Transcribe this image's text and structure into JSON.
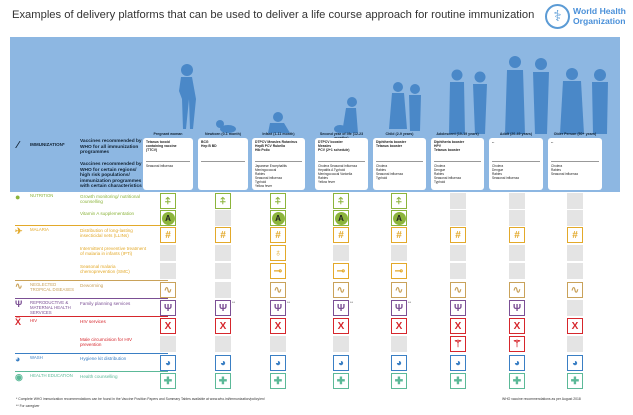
{
  "title": "Examples of delivery platforms that can be used to deliver a life course approach for routine immunization",
  "logo": {
    "text": [
      "World Health",
      "Organization"
    ],
    "icon": "who-emblem-icon"
  },
  "immunization": {
    "label": "IMMUNIZATION*",
    "icon": "syringe-icon",
    "all_programmes": "Vaccines recommended by WHO for all immunization programmes",
    "certain": "Vaccines recommended by WHO for certain regions/ high risk populations/ immunization programmes with certain characteristics"
  },
  "columns": [
    {
      "name": "Pregnant woman",
      "age": "",
      "all": [
        "Tetanus toxoid",
        "containing vaccine",
        "(TTCV)"
      ],
      "certain": [
        "Seasonal influenza"
      ]
    },
    {
      "name": "Newborn",
      "age": "(0-1 month)",
      "all": [
        "BCG",
        "Hep B BD"
      ],
      "certain": []
    },
    {
      "name": "Infant",
      "age": "(1-11 month)",
      "all": [
        "DTPCV  Measles  Rotavirus",
        "HepB   PCV  Rubella",
        "Hib   Polio"
      ],
      "certain": [
        "Japanese Encephalitis",
        "Meningococcal",
        "Rabies",
        "Seasonal influenza",
        "Typhoid",
        "Yellow fever"
      ]
    },
    {
      "name": "Second year of life",
      "age": "(12-23 months)",
      "all": [
        "DTPCV booster",
        "Measles",
        "PCV (2+1 schedule)"
      ],
      "certain": [
        "Cholera   Seasonal influenza",
        "Hepatitis A   Typhoid",
        "Meningococcal   Varicella",
        "Rabies",
        "Yellow fever"
      ]
    },
    {
      "name": "Child",
      "age": "(2-9 years)",
      "all": [
        "Diphtheria booster",
        "Tetanus booster"
      ],
      "certain": [
        "Cholera",
        "Rabies",
        "Seasonal influenza",
        "Typhoid"
      ]
    },
    {
      "name": "Adolescent",
      "age": "(10-19 years)",
      "all": [
        "Diphtheria booster",
        "HPV",
        "Tetanus booster"
      ],
      "certain": [
        "Cholera",
        "Dengue",
        "Rabies",
        "Seasonal influenza",
        "Typhoid"
      ]
    },
    {
      "name": "Adult",
      "age": "(20-49 years)",
      "all": [
        "--"
      ],
      "certain": [
        "Cholera",
        "Dengue",
        "Rabies",
        "Seasonal influenza"
      ]
    },
    {
      "name": "Older Person",
      "age": "(50+ years)",
      "all": [
        "--"
      ],
      "certain": [
        "Cholera",
        "Rabies",
        "Seasonal influenza"
      ]
    }
  ],
  "categories": [
    {
      "label": "NUTRITION",
      "color": "#8cb43c",
      "icon": "apple-icon",
      "glyph": "●"
    },
    {
      "label": "MALARIA",
      "color": "#e3a92a",
      "icon": "mosquito-icon",
      "glyph": "✈"
    },
    {
      "label": "NEGLECTED TROPICAL DISEASES",
      "color": "#c9a25a",
      "icon": "worm-icon",
      "glyph": "∿"
    },
    {
      "label": "REPRODUCTIVE & MATERNAL HEALTH SERVICES",
      "color": "#7b4f94",
      "icon": "uterus-icon",
      "glyph": "Ψ"
    },
    {
      "label": "HIV",
      "color": "#d6262c",
      "icon": "ribbon-icon",
      "glyph": "Ẍ"
    },
    {
      "label": "WASH",
      "color": "#3a7fc4",
      "icon": "hands-washing-icon",
      "glyph": "◕"
    },
    {
      "label": "HEALTH EDUCATION",
      "color": "#5cb998",
      "icon": "speech-bubble-icon",
      "glyph": "◉"
    }
  ],
  "services": [
    {
      "cat": 0,
      "label": "Growth monitoring/ nutritional counselling",
      "icon": "growth-monitoring-icon",
      "glyph": "⍏",
      "avail": [
        1,
        1,
        1,
        1,
        1,
        0,
        0,
        0
      ]
    },
    {
      "cat": 0,
      "label": "Vitamin A supplementation",
      "icon": "vitamin-a-icon",
      "glyph": "A",
      "avail": [
        1,
        0,
        1,
        1,
        1,
        0,
        0,
        0
      ]
    },
    {
      "cat": 1,
      "label": "Distribution of long-lasting insecticidal nets (LLINs)",
      "icon": "bednet-mosquito-icon",
      "glyph": "#",
      "avail": [
        1,
        1,
        1,
        1,
        1,
        1,
        1,
        1
      ]
    },
    {
      "cat": 1,
      "label": "Intermittent preventive treatment of malaria in infants (IPTi)",
      "icon": "medicine-bottle-icon",
      "glyph": "♁",
      "avail": [
        0,
        0,
        1,
        0,
        0,
        0,
        0,
        0
      ]
    },
    {
      "cat": 1,
      "label": "Seasonal malaria chemoprevention (SMC)",
      "icon": "spoon-medicine-icon",
      "glyph": "⊸",
      "avail": [
        0,
        0,
        1,
        1,
        1,
        0,
        0,
        0
      ]
    },
    {
      "cat": 2,
      "label": "Deworming",
      "icon": "worm-icon",
      "glyph": "∿",
      "avail": [
        1,
        0,
        1,
        1,
        1,
        1,
        1,
        1
      ]
    },
    {
      "cat": 3,
      "label": "Family planning services",
      "icon": "uterus-icon",
      "glyph": "Ψ",
      "avail": [
        1,
        2,
        2,
        2,
        2,
        1,
        1,
        0
      ]
    },
    {
      "cat": 4,
      "label": "HIV services",
      "icon": "ribbon-icon",
      "glyph": "X",
      "avail": [
        1,
        1,
        1,
        1,
        1,
        1,
        1,
        1
      ]
    },
    {
      "cat": 4,
      "label": "Male circumcision for HIV prevention",
      "icon": "scalpel-icon",
      "glyph": "⚚",
      "avail": [
        0,
        0,
        0,
        0,
        0,
        1,
        1,
        0
      ]
    },
    {
      "cat": 5,
      "label": "Hygiene kit distribution",
      "icon": "hands-washing-icon",
      "glyph": "◕",
      "avail": [
        1,
        1,
        1,
        1,
        1,
        1,
        1,
        1
      ]
    },
    {
      "cat": 6,
      "label": "Health counselling",
      "icon": "speech-bubble-icon",
      "glyph": "✚",
      "avail": [
        1,
        1,
        1,
        1,
        1,
        1,
        1,
        1
      ]
    }
  ],
  "caregiver_mark": "**",
  "footnotes": [
    "*  Complete WHO immunization recommendations can be found in the Vaccine Position Papers and Summary Tables available at www.who.int/immunization/policy/en/",
    "**  For caregiver"
  ],
  "footnote_right": "WHO vaccine recommendations as per August 2018"
}
